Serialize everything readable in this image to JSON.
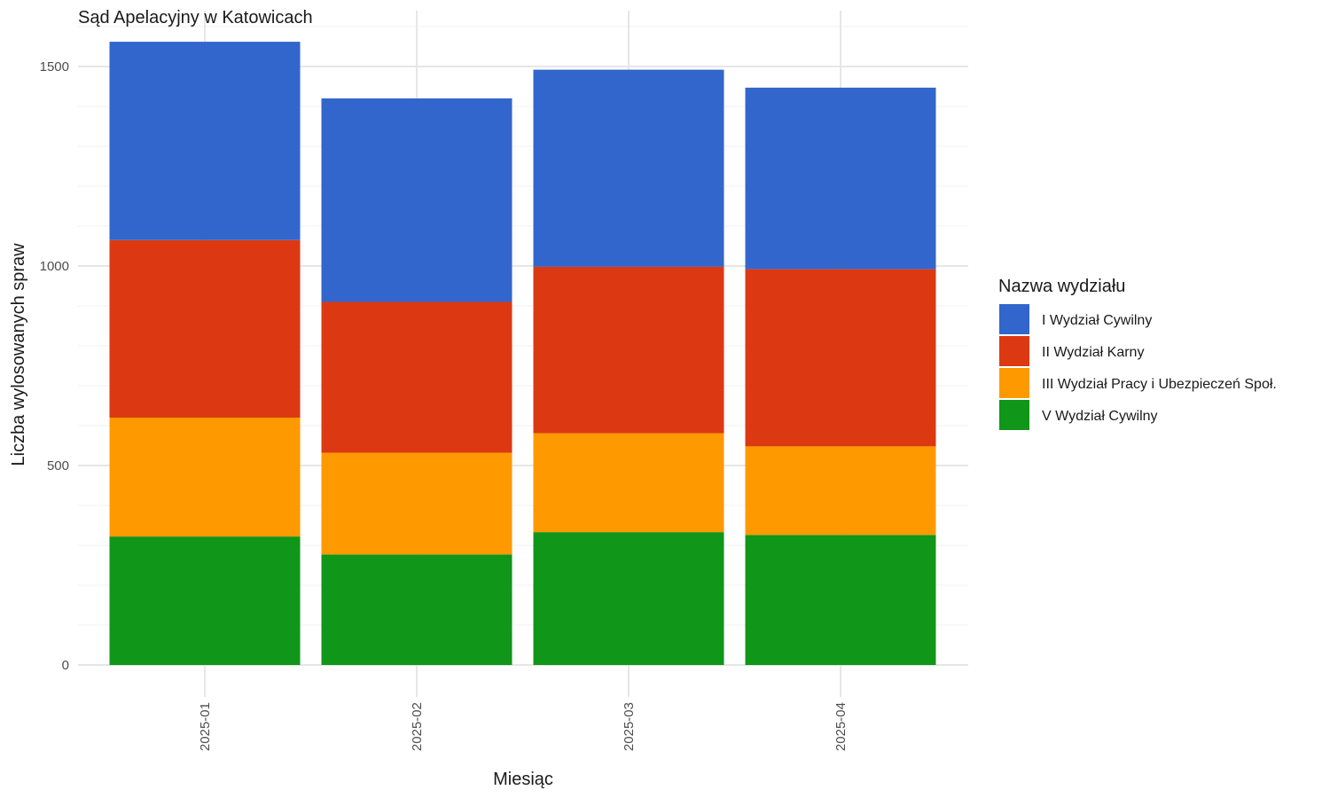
{
  "chart_data": {
    "type": "bar",
    "stacked": true,
    "title": "Sąd Apelacyjny w Katowicach",
    "xlabel": "Miesiąc",
    "ylabel": "Liczba wylosowanych spraw",
    "categories": [
      "2025-01",
      "2025-02",
      "2025-03",
      "2025-04"
    ],
    "ylim": [
      0,
      1600
    ],
    "yticks": [
      0,
      500,
      1000,
      1500
    ],
    "grid": true,
    "legend": {
      "title": "Nazwa wydziału",
      "placement": "right"
    },
    "series": [
      {
        "name": "V Wydział Cywilny",
        "color": "#109618",
        "values": [
          322,
          277,
          333,
          326
        ]
      },
      {
        "name": "III Wydział Pracy i Ubezpieczeń Społ.",
        "color": "#FF9900",
        "values": [
          298,
          255,
          248,
          222
        ]
      },
      {
        "name": "II Wydział Karny",
        "color": "#DC3912",
        "values": [
          445,
          378,
          417,
          444
        ]
      },
      {
        "name": "I Wydział Cywilny",
        "color": "#3366CC",
        "values": [
          497,
          510,
          494,
          455
        ]
      }
    ],
    "legend_order": [
      "I Wydział Cywilny",
      "II Wydział Karny",
      "III Wydział Pracy i Ubezpieczeń Społ.",
      "V Wydział Cywilny"
    ]
  }
}
